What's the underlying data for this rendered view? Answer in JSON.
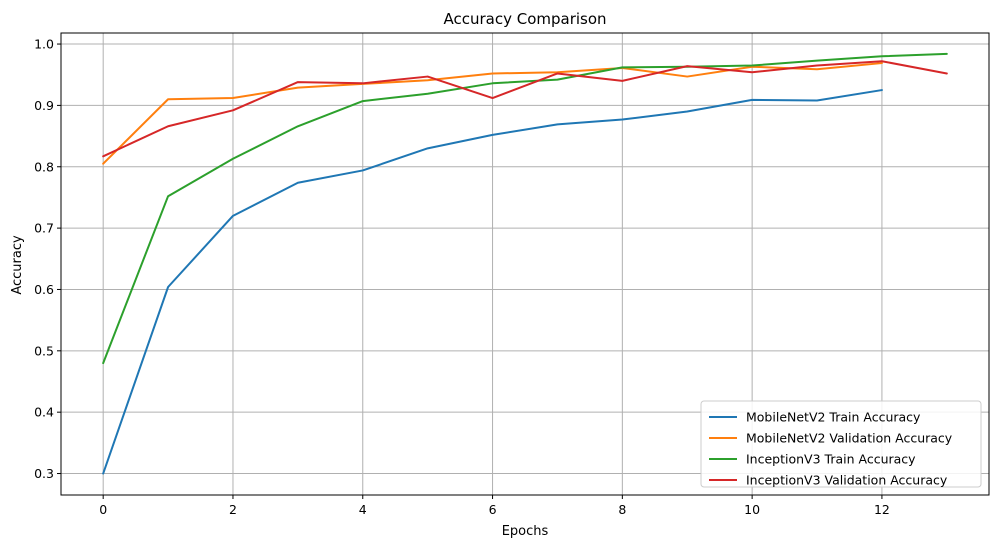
{
  "chart_data": {
    "type": "line",
    "title": "Accuracy Comparison",
    "xlabel": "Epochs",
    "ylabel": "Accuracy",
    "xlim": [
      -0.65,
      13.65
    ],
    "ylim": [
      0.265,
      1.018
    ],
    "xticks": [
      0,
      2,
      4,
      6,
      8,
      10,
      12
    ],
    "yticks": [
      0.3,
      0.4,
      0.5,
      0.6,
      0.7,
      0.8,
      0.9,
      1.0
    ],
    "ytick_labels": [
      "0.3",
      "0.4",
      "0.5",
      "0.6",
      "0.7",
      "0.8",
      "0.9",
      "1.0"
    ],
    "grid": true,
    "legend_position": "lower-right",
    "series": [
      {
        "name": "MobileNetV2 Train Accuracy",
        "color": "#1f77b4",
        "x": [
          0,
          1,
          2,
          3,
          4,
          5,
          6,
          7,
          8,
          9,
          10,
          11,
          12
        ],
        "values": [
          0.3,
          0.604,
          0.72,
          0.774,
          0.794,
          0.83,
          0.852,
          0.869,
          0.877,
          0.89,
          0.909,
          0.908,
          0.925
        ]
      },
      {
        "name": "MobileNetV2 Validation Accuracy",
        "color": "#ff7f0e",
        "x": [
          0,
          1,
          2,
          3,
          4,
          5,
          6,
          7,
          8,
          9,
          10,
          11,
          12
        ],
        "values": [
          0.805,
          0.91,
          0.912,
          0.929,
          0.935,
          0.941,
          0.952,
          0.954,
          0.961,
          0.947,
          0.963,
          0.959,
          0.969
        ]
      },
      {
        "name": "InceptionV3 Train Accuracy",
        "color": "#2ca02c",
        "x": [
          0,
          1,
          2,
          3,
          4,
          5,
          6,
          7,
          8,
          9,
          10,
          11,
          12,
          13
        ],
        "values": [
          0.48,
          0.752,
          0.813,
          0.866,
          0.907,
          0.919,
          0.936,
          0.942,
          0.962,
          0.963,
          0.965,
          0.973,
          0.98,
          0.984
        ]
      },
      {
        "name": "InceptionV3 Validation Accuracy",
        "color": "#d62728",
        "x": [
          0,
          1,
          2,
          3,
          4,
          5,
          6,
          7,
          8,
          9,
          10,
          11,
          12,
          13
        ],
        "values": [
          0.817,
          0.866,
          0.892,
          0.938,
          0.936,
          0.947,
          0.912,
          0.952,
          0.94,
          0.964,
          0.954,
          0.965,
          0.972,
          0.952
        ]
      }
    ]
  }
}
